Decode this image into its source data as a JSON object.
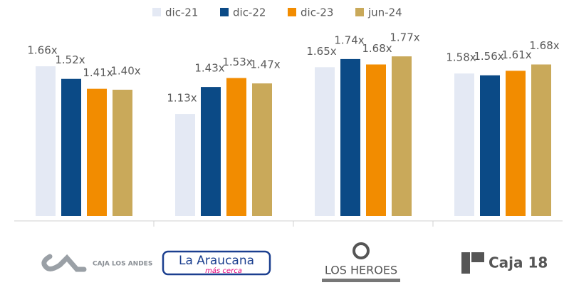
{
  "chart_data": {
    "type": "bar",
    "categories": [
      "CAJA LOS ANDES",
      "La Araucana",
      "LOS HEROES",
      "Caja 18"
    ],
    "logo_taglines": [
      null,
      "más cerca",
      null,
      null
    ],
    "series": [
      {
        "name": "dic-21",
        "color": "#e4e9f4",
        "values": [
          1.66,
          1.13,
          1.65,
          1.58
        ],
        "value_labels": [
          "1.66x",
          "1.13x",
          "1.65x",
          "1.58x"
        ]
      },
      {
        "name": "dic-22",
        "color": "#0b4a86",
        "values": [
          1.52,
          1.43,
          1.74,
          1.56
        ],
        "value_labels": [
          "1.52x",
          "1.43x",
          "1.74x",
          "1.56x"
        ]
      },
      {
        "name": "dic-23",
        "color": "#f28c00",
        "values": [
          1.41,
          1.53,
          1.68,
          1.61
        ],
        "value_labels": [
          "1.41x",
          "1.53x",
          "1.68x",
          "1.61x"
        ]
      },
      {
        "name": "jun-24",
        "color": "#c9a95a",
        "values": [
          1.4,
          1.47,
          1.77,
          1.68
        ],
        "value_labels": [
          "1.40x",
          "1.47x",
          "1.77x",
          "1.68x"
        ]
      }
    ],
    "legend": "top"
  }
}
